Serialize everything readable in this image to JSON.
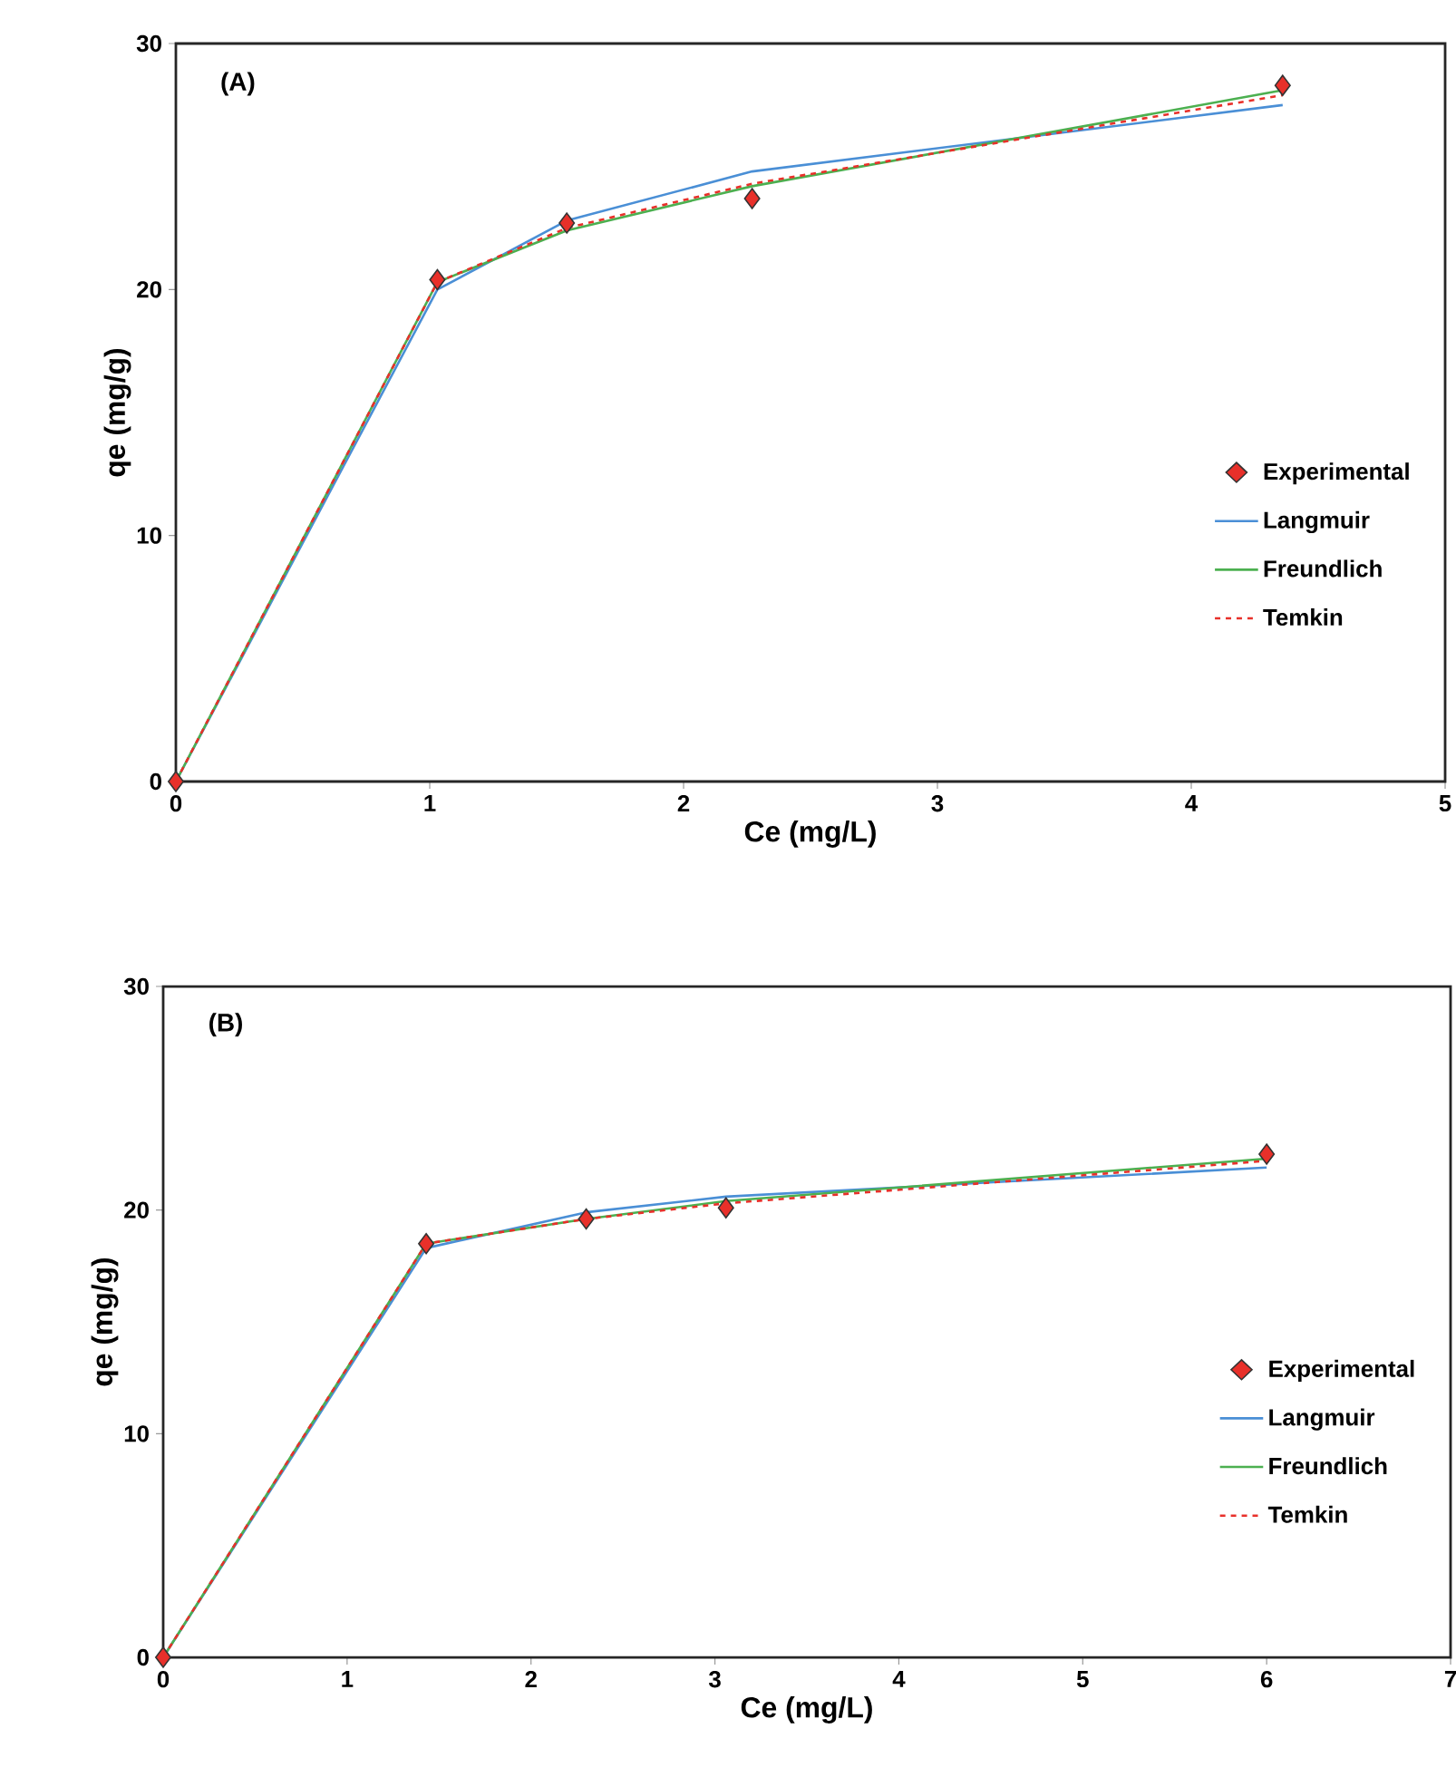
{
  "chart_data": [
    {
      "type": "line",
      "annotations": [
        "(A)"
      ],
      "xlabel": "Ce (mg/L)",
      "ylabel": "qe (mg/g)",
      "xlim": [
        0,
        5
      ],
      "ylim": [
        0,
        30
      ],
      "xticks": [
        0,
        1,
        2,
        3,
        4,
        5
      ],
      "yticks": [
        0,
        10,
        20,
        30
      ],
      "legend": "right",
      "series": [
        {
          "name": "Experimental",
          "type": "scatter",
          "marker": "diamond",
          "color": "#e8302a",
          "x": [
            0,
            1.03,
            1.54,
            2.27,
            4.36
          ],
          "values": [
            0,
            20.4,
            22.7,
            23.7,
            28.3
          ]
        },
        {
          "name": "Langmuir",
          "type": "line",
          "line_style": "solid",
          "color": "#4a8fd6",
          "x": [
            0,
            1.03,
            1.54,
            2.27,
            4.36
          ],
          "values": [
            0,
            20.0,
            22.8,
            24.8,
            27.5
          ]
        },
        {
          "name": "Freundlich",
          "type": "line",
          "line_style": "solid",
          "color": "#4cb050",
          "x": [
            0,
            1.03,
            1.54,
            2.27,
            4.36
          ],
          "values": [
            0,
            20.3,
            22.4,
            24.2,
            28.1
          ]
        },
        {
          "name": "Temkin",
          "type": "line",
          "line_style": "dashed",
          "color": "#e8302a",
          "x": [
            0,
            1.03,
            1.54,
            2.27,
            4.36
          ],
          "values": [
            0,
            20.3,
            22.5,
            24.3,
            27.9
          ]
        }
      ]
    },
    {
      "type": "line",
      "annotations": [
        "(B)"
      ],
      "xlabel": "Ce (mg/L)",
      "ylabel": "qe (mg/g)",
      "xlim": [
        0,
        7
      ],
      "ylim": [
        0,
        30
      ],
      "xticks": [
        0,
        1,
        2,
        3,
        4,
        5,
        6,
        7
      ],
      "yticks": [
        0,
        10,
        20,
        30
      ],
      "legend": "right",
      "series": [
        {
          "name": "Experimental",
          "type": "scatter",
          "marker": "diamond",
          "color": "#e8302a",
          "x": [
            0,
            1.43,
            2.3,
            3.06,
            6.0
          ],
          "values": [
            0,
            18.5,
            19.6,
            20.1,
            22.5
          ]
        },
        {
          "name": "Langmuir",
          "type": "line",
          "line_style": "solid",
          "color": "#4a8fd6",
          "x": [
            0,
            1.43,
            2.3,
            3.06,
            6.0
          ],
          "values": [
            0,
            18.3,
            19.9,
            20.6,
            21.9
          ]
        },
        {
          "name": "Freundlich",
          "type": "line",
          "line_style": "solid",
          "color": "#4cb050",
          "x": [
            0,
            1.43,
            2.3,
            3.06,
            6.0
          ],
          "values": [
            0,
            18.5,
            19.6,
            20.4,
            22.3
          ]
        },
        {
          "name": "Temkin",
          "type": "line",
          "line_style": "dashed",
          "color": "#e8302a",
          "x": [
            0,
            1.43,
            2.3,
            3.06,
            6.0
          ],
          "values": [
            0,
            18.5,
            19.6,
            20.3,
            22.2
          ]
        }
      ]
    }
  ]
}
